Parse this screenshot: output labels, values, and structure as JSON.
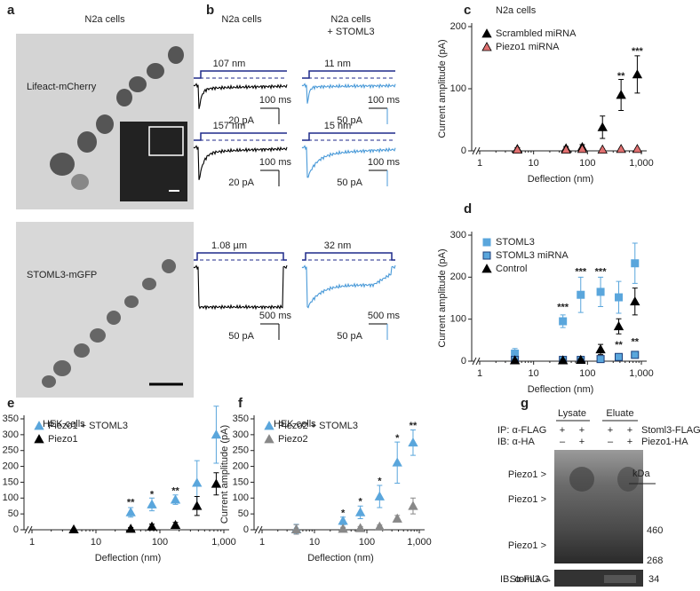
{
  "panel_labels": [
    "a",
    "b",
    "c",
    "d",
    "e",
    "f",
    "g"
  ],
  "panel_a": {
    "title": "N2a cells",
    "image_labels": [
      "Lifeact-mCherry",
      "STOML3-mGFP"
    ]
  },
  "panel_b": {
    "columns": [
      {
        "title": "N2a cells"
      },
      {
        "title": "N2a cells",
        "subtitle": "+ STOML3"
      }
    ],
    "traces": [
      {
        "stimulus": "107 nm",
        "time_bar": "100 ms",
        "current_bar": "20 pA"
      },
      {
        "stimulus": "11 nm",
        "time_bar": "100 ms",
        "current_bar": "50 pA"
      },
      {
        "stimulus": "157 nm",
        "time_bar": "100 ms",
        "current_bar": "20 pA"
      },
      {
        "stimulus": "15 nm",
        "time_bar": "100 ms",
        "current_bar": "50 pA"
      },
      {
        "stimulus": "1.08 µm",
        "time_bar": "500 ms",
        "current_bar": "50 pA"
      },
      {
        "stimulus": "32 nm",
        "time_bar": "500 ms",
        "current_bar": "50 pA"
      }
    ]
  },
  "panel_g": {
    "headers": [
      "Lysate",
      "Eluate"
    ],
    "rows": [
      {
        "label": "IP: α-FLAG",
        "signs": [
          "+",
          "+",
          "+",
          "+"
        ],
        "right": "Stoml3-FLAG"
      },
      {
        "label": "IB: α-HA",
        "signs": [
          "–",
          "+",
          "–",
          "+"
        ],
        "right": "Piezo1-HA"
      }
    ],
    "band_labels": [
      "Piezo1 >",
      "Piezo1 >",
      "Piezo1 >"
    ],
    "unit": "kDa",
    "markers": [
      "460",
      "268"
    ],
    "lower_label": "IB: α-FLAG",
    "lower_band": "Stoml3 →",
    "lower_marker": "34"
  },
  "chart_data": [
    {
      "type": "scatter",
      "title": "N2a cells",
      "xlabel": "Deflection (nm)",
      "ylabel": "Current amplitude (pA)",
      "xscale": "log",
      "xlim": [
        1,
        1000
      ],
      "xticks": [
        1,
        10,
        100,
        {
          "value": 1000,
          "label": "1,000"
        }
      ],
      "ylim": [
        0,
        200
      ],
      "yticks": [
        0,
        100,
        200
      ],
      "legend": "upper left",
      "x": [
        5,
        40,
        80,
        190,
        420,
        840
      ],
      "series": [
        {
          "name": "Scrambled miRNA",
          "color": "#000000",
          "marker": "triangle",
          "values": [
            3,
            4,
            6,
            38,
            90,
            123
          ],
          "errors": [
            2,
            3,
            4,
            18,
            25,
            30
          ]
        },
        {
          "name": "Piezo1 miRNA",
          "color": "#e07070",
          "edgecolor": "#000000",
          "marker": "triangle",
          "values": [
            2,
            2,
            3,
            2,
            3,
            3
          ],
          "errors": [
            1,
            1,
            1,
            1,
            1,
            1
          ]
        }
      ],
      "annotations": [
        {
          "text": "**",
          "x": 420,
          "y": 120
        },
        {
          "text": "***",
          "x": 840,
          "y": 160
        }
      ]
    },
    {
      "type": "scatter",
      "xlabel": "Deflection (nm)",
      "ylabel": "Current amplitude (pA)",
      "xscale": "log",
      "xlim": [
        1,
        1000
      ],
      "xticks": [
        1,
        10,
        100,
        {
          "value": 1000,
          "label": "1,000"
        }
      ],
      "ylim": [
        0,
        300
      ],
      "yticks": [
        0,
        100,
        200,
        300
      ],
      "legend": "upper left",
      "x": [
        4.5,
        35,
        75,
        175,
        380,
        760
      ],
      "series": [
        {
          "name": "STOML3",
          "color": "#5aa6dc",
          "marker": "square",
          "values": [
            18,
            95,
            158,
            165,
            152,
            233
          ],
          "errors": [
            12,
            15,
            42,
            35,
            38,
            48
          ]
        },
        {
          "name": "STOML3 miRNA",
          "color": "#5aa6dc",
          "edgecolor": "#1a3d7a",
          "marker": "square",
          "values": [
            3,
            3,
            3,
            5,
            10,
            15
          ],
          "errors": [
            2,
            1,
            1,
            2,
            3,
            3
          ]
        },
        {
          "name": "Control",
          "color": "#000000",
          "marker": "triangle",
          "values": [
            2,
            2,
            3,
            28,
            83,
            142
          ],
          "errors": [
            2,
            2,
            2,
            12,
            18,
            32
          ]
        }
      ],
      "annotations": [
        {
          "text": "***",
          "x": 35,
          "y": 128
        },
        {
          "text": "***",
          "x": 75,
          "y": 212
        },
        {
          "text": "***",
          "x": 175,
          "y": 212
        },
        {
          "text": "**",
          "x": 380,
          "y": 38
        },
        {
          "text": "**",
          "x": 760,
          "y": 45
        }
      ]
    },
    {
      "type": "scatter",
      "title": "HEK cells",
      "xlabel": "Deflection (nm)",
      "ylabel": "Current amplitude (pA)",
      "xscale": "log",
      "xlim": [
        1,
        1000
      ],
      "xticks": [
        1,
        10,
        100,
        {
          "value": 1000,
          "label": "1,000"
        }
      ],
      "ylim": [
        0,
        350
      ],
      "yticks": [
        0,
        50,
        100,
        150,
        200,
        250,
        300,
        350
      ],
      "legend": "upper left",
      "x": [
        4.5,
        35,
        75,
        175,
        380,
        760
      ],
      "series": [
        {
          "name": "Piezo1 + STOML3",
          "color": "#5aa6dc",
          "marker": "triangle",
          "values": [
            null,
            55,
            80,
            95,
            148,
            300
          ],
          "errors": [
            null,
            15,
            20,
            15,
            70,
            90
          ]
        },
        {
          "name": "Piezo1",
          "color": "#000000",
          "marker": "triangle",
          "values": [
            1,
            3,
            10,
            15,
            75,
            145
          ],
          "errors": [
            1,
            4,
            8,
            8,
            30,
            35
          ]
        }
      ],
      "annotations": [
        {
          "text": "**",
          "x": 35,
          "y": 85
        },
        {
          "text": "*",
          "x": 75,
          "y": 110
        },
        {
          "text": "**",
          "x": 175,
          "y": 122
        }
      ]
    },
    {
      "type": "scatter",
      "title": "HEK cells",
      "xlabel": "Deflection (nm)",
      "ylabel": "Current amplitude (pA)",
      "xscale": "log",
      "xlim": [
        1,
        1000
      ],
      "xticks": [
        1,
        10,
        100,
        {
          "value": 1000,
          "label": "1,000"
        }
      ],
      "ylim": [
        0,
        350
      ],
      "yticks": [
        0,
        50,
        100,
        150,
        200,
        250,
        300,
        350
      ],
      "legend": "upper left",
      "x": [
        4.5,
        35,
        75,
        175,
        380,
        760
      ],
      "series": [
        {
          "name": "Piezo2 + STOML3",
          "color": "#5aa6dc",
          "marker": "triangle",
          "values": [
            2,
            28,
            55,
            105,
            212,
            275
          ],
          "errors": [
            15,
            12,
            20,
            35,
            65,
            40
          ]
        },
        {
          "name": "Piezo2",
          "color": "#888888",
          "marker": "triangle",
          "values": [
            1,
            3,
            5,
            10,
            35,
            75
          ],
          "errors": [
            15,
            5,
            5,
            5,
            10,
            25
          ]
        }
      ],
      "annotations": [
        {
          "text": "*",
          "x": 35,
          "y": 52
        },
        {
          "text": "*",
          "x": 75,
          "y": 88
        },
        {
          "text": "*",
          "x": 175,
          "y": 152
        },
        {
          "text": "*",
          "x": 380,
          "y": 288
        },
        {
          "text": "**",
          "x": 760,
          "y": 328
        }
      ]
    }
  ]
}
